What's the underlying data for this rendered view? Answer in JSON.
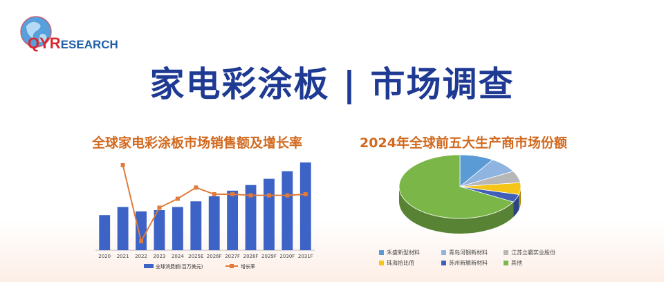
{
  "logo": {
    "text_qy": "QY",
    "text_r": "R",
    "text_rest": "ESEARCH",
    "colors": {
      "red": "#d8282f",
      "blue": "#1f5fa8",
      "globe": "#3a8fd6"
    }
  },
  "main_title": "家电彩涂板 | 市场调查",
  "chart_data": [
    {
      "type": "bar",
      "title": "全球家电彩涂板市场销售额及增长率",
      "categories": [
        "2020",
        "2021",
        "2022",
        "2023",
        "2024",
        "2025E",
        "2026F",
        "2027F",
        "2028F",
        "2029F",
        "2030F",
        "2031F"
      ],
      "series": [
        {
          "name": "全球消费额(百万美元)",
          "type": "bar",
          "color": "#3c63c5",
          "values": [
            56,
            69,
            62,
            64,
            69,
            78,
            86,
            95,
            104,
            114,
            126,
            140
          ]
        },
        {
          "name": "增长率",
          "type": "line",
          "color": "#e07b3c",
          "values": [
            null,
            23,
            -11,
            4,
            8,
            13,
            10,
            10,
            9.5,
            9.5,
            9.5,
            10
          ]
        }
      ],
      "legend": "bottom-center"
    },
    {
      "type": "pie",
      "title": "2024年全球前五大生产商市场份额",
      "style": "3d",
      "slices": [
        {
          "label": "禾盛新型材料",
          "value": 9,
          "color": "#5b9bd5"
        },
        {
          "label": "青岛河钢新材料",
          "value": 8,
          "color": "#8fb4e0"
        },
        {
          "label": "江苏立霸实业股份",
          "value": 6,
          "color": "#b7b7b7"
        },
        {
          "label": "珠海拾比佰",
          "value": 6,
          "color": "#f5c518"
        },
        {
          "label": "苏州新颖新材料",
          "value": 4,
          "color": "#3f5fb8"
        },
        {
          "label": "其他",
          "value": 67,
          "color": "#7ab648"
        }
      ],
      "legend": "bottom"
    }
  ]
}
